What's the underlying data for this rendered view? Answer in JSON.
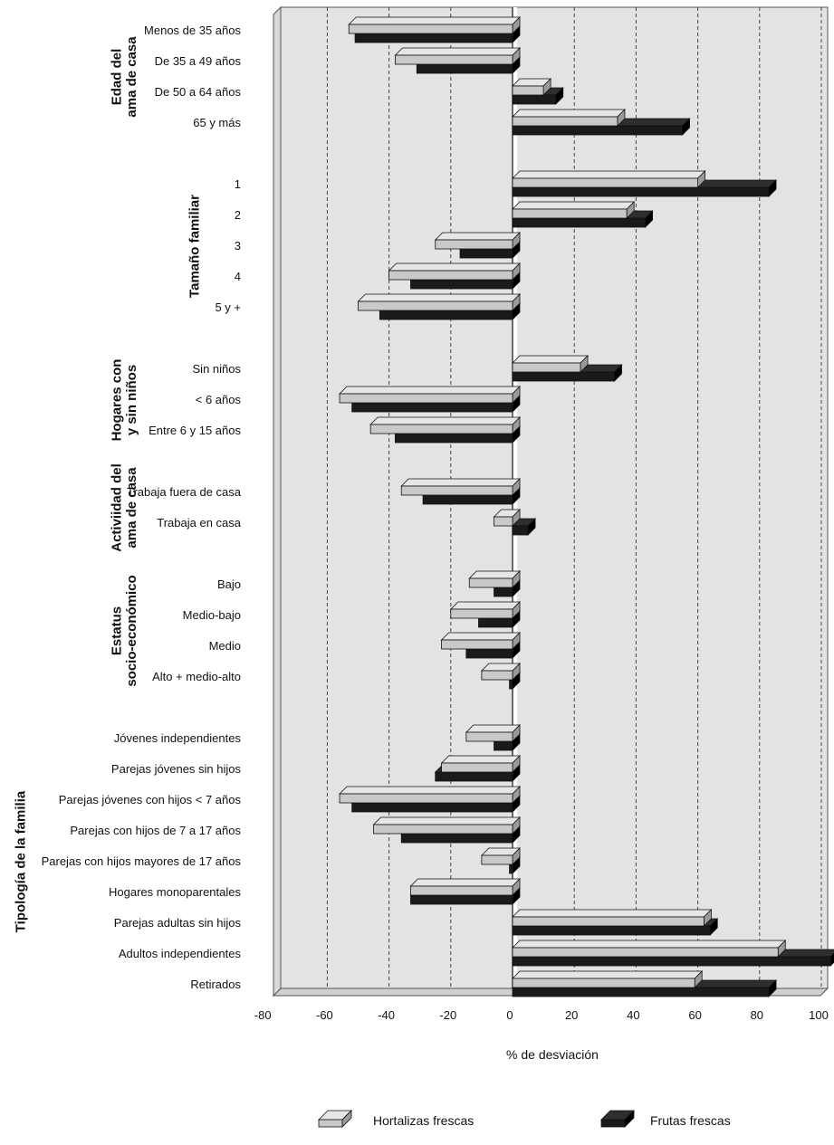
{
  "chart_data": {
    "type": "bar",
    "orientation": "horizontal",
    "xlabel": "% de desviación",
    "xlim": [
      -80,
      100
    ],
    "xticks": [
      -80,
      -60,
      -40,
      -20,
      0,
      20,
      40,
      60,
      80,
      100
    ],
    "grid": "vertical dashed",
    "legend_position": "bottom",
    "colors": {
      "hortalizas": "#c9c9c9",
      "frutas": "#1a1a1a",
      "plot_bg": "#e3e3e3"
    },
    "series": [
      {
        "name": "Hortalizas frescas",
        "key": "hortalizas"
      },
      {
        "name": "Frutas frescas",
        "key": "frutas"
      }
    ],
    "groups": [
      {
        "label": [
          "Edad del",
          "ama de casa"
        ],
        "items": [
          {
            "label": "Menos de 35 años",
            "hortalizas": -53,
            "frutas": -51
          },
          {
            "label": "De 35 a 49 años",
            "hortalizas": -38,
            "frutas": -31
          },
          {
            "label": "De 50 a 64 años",
            "hortalizas": 10,
            "frutas": 14
          },
          {
            "label": "65 y más",
            "hortalizas": 34,
            "frutas": 55
          }
        ]
      },
      {
        "label": [
          "Tamaño familiar"
        ],
        "items": [
          {
            "label": "1",
            "hortalizas": 60,
            "frutas": 83
          },
          {
            "label": "2",
            "hortalizas": 37,
            "frutas": 43
          },
          {
            "label": "3",
            "hortalizas": -25,
            "frutas": -17
          },
          {
            "label": "4",
            "hortalizas": -40,
            "frutas": -33
          },
          {
            "label": "5 y +",
            "hortalizas": -50,
            "frutas": -43
          }
        ]
      },
      {
        "label": [
          "Hogares con",
          "y sin niños"
        ],
        "items": [
          {
            "label": "Sin niños",
            "hortalizas": 22,
            "frutas": 33
          },
          {
            "label": "< 6 años",
            "hortalizas": -56,
            "frutas": -52
          },
          {
            "label": "Entre 6 y 15 años",
            "hortalizas": -46,
            "frutas": -38
          }
        ]
      },
      {
        "label": [
          "Activiidad del",
          "ama de casa"
        ],
        "items": [
          {
            "label": "Trabaja fuera de casa",
            "hortalizas": -36,
            "frutas": -29
          },
          {
            "label": "Trabaja en casa",
            "hortalizas": -6,
            "frutas": 5
          }
        ]
      },
      {
        "label": [
          "Estatus",
          "socio-económico"
        ],
        "items": [
          {
            "label": "Bajo",
            "hortalizas": -14,
            "frutas": -6
          },
          {
            "label": "Medio-bajo",
            "hortalizas": -20,
            "frutas": -11
          },
          {
            "label": "Medio",
            "hortalizas": -23,
            "frutas": -15
          },
          {
            "label": "Alto + medio-alto",
            "hortalizas": -10,
            "frutas": -1
          }
        ]
      },
      {
        "label": [
          "Tipología de la familia"
        ],
        "items": [
          {
            "label": "Jóvenes independientes",
            "hortalizas": -15,
            "frutas": -6
          },
          {
            "label": "Parejas jóvenes sin hijos",
            "hortalizas": -23,
            "frutas": -25
          },
          {
            "label": "Parejas jóvenes con hijos < 7 años",
            "hortalizas": -56,
            "frutas": -52
          },
          {
            "label": "Parejas con hijos de 7 a 17 años",
            "hortalizas": -45,
            "frutas": -36
          },
          {
            "label": "Parejas con hijos mayores de 17 años",
            "hortalizas": -10,
            "frutas": -1
          },
          {
            "label": "Hogares monoparentales",
            "hortalizas": -33,
            "frutas": -33
          },
          {
            "label": "Parejas adultas sin hijos",
            "hortalizas": 62,
            "frutas": 64
          },
          {
            "label": "Adultos independientes",
            "hortalizas": 86,
            "frutas": 103
          },
          {
            "label": "Retirados",
            "hortalizas": 59,
            "frutas": 83
          }
        ]
      }
    ]
  }
}
